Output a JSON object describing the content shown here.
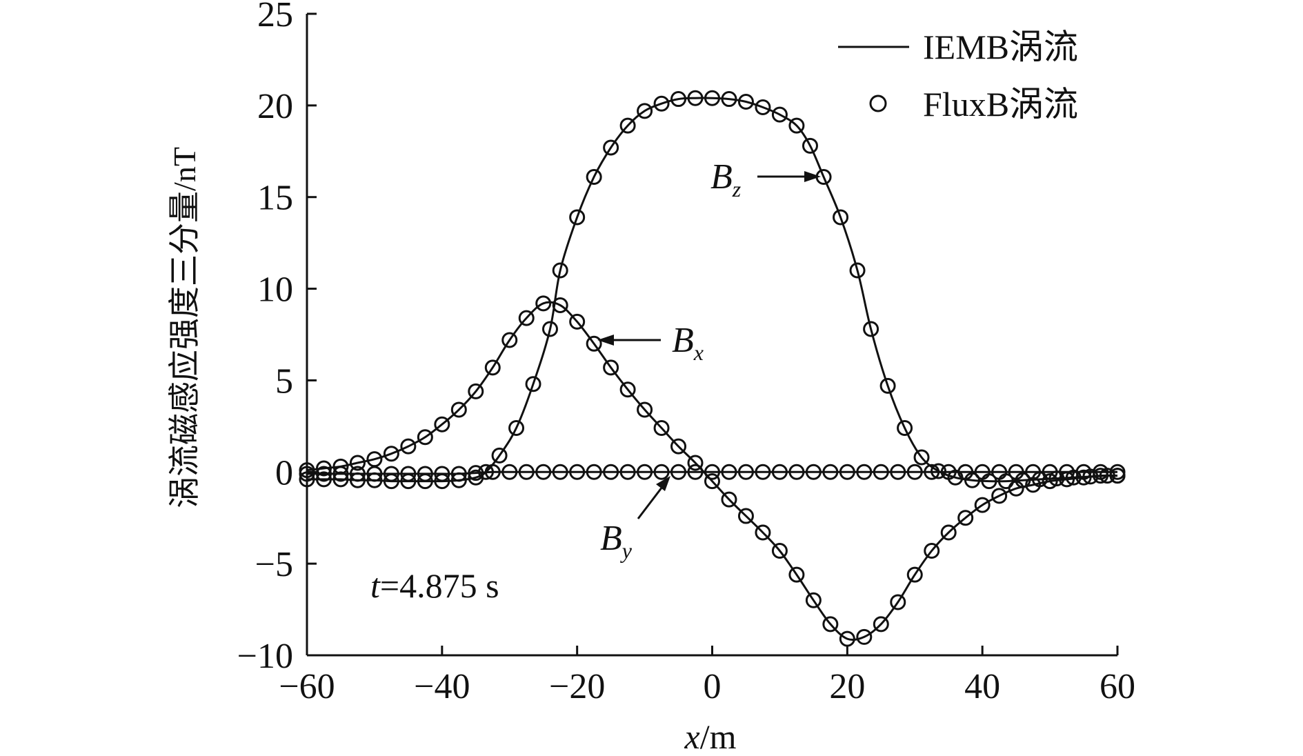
{
  "chart_data": {
    "type": "line",
    "xlabel_var": "x",
    "xlabel_unit": "/m",
    "ylabel": "涡流磁感应强度三分量/nT",
    "xlim": [
      -60,
      60
    ],
    "ylim": [
      -10,
      25
    ],
    "xticks": [
      -60,
      -40,
      -20,
      0,
      20,
      40,
      60
    ],
    "yticks": [
      -10,
      -5,
      0,
      5,
      10,
      15,
      20,
      25
    ],
    "xtick_labels": [
      "−60",
      "−40",
      "−20",
      "0",
      "20",
      "40",
      "60"
    ],
    "ytick_labels": [
      "−10",
      "−5",
      "0",
      "5",
      "10",
      "15",
      "20",
      "25"
    ],
    "legend": {
      "position": "top-right",
      "line_label": "IEMB涡流",
      "marker_label": "FluxB涡流"
    },
    "time_label_var": "t",
    "time_label_rest": "=4.875 s",
    "series": [
      {
        "name": "Bz",
        "label_main": "B",
        "label_sub": "z",
        "x": [
          -60,
          -57.5,
          -55,
          -52.5,
          -50,
          -47.5,
          -45,
          -42.5,
          -40,
          -37.5,
          -35,
          -33.5,
          -31.5,
          -29,
          -26.5,
          -24,
          -22.5,
          -20,
          -17.5,
          -15,
          -12.5,
          -10,
          -7.5,
          -5,
          -2.5,
          0,
          2.5,
          5,
          7.5,
          10,
          12.5,
          14.5,
          16.5,
          19,
          21.5,
          23.5,
          26,
          28.5,
          31,
          33.5,
          36,
          38.5,
          41,
          43.5,
          46,
          48.5,
          51,
          53.5,
          56,
          58.5,
          60
        ],
        "y": [
          -0.4,
          -0.4,
          -0.4,
          -0.45,
          -0.45,
          -0.5,
          -0.5,
          -0.5,
          -0.5,
          -0.45,
          -0.3,
          0.0,
          0.9,
          2.4,
          4.8,
          7.8,
          11.0,
          13.9,
          16.1,
          17.7,
          18.9,
          19.7,
          20.1,
          20.35,
          20.4,
          20.4,
          20.35,
          20.2,
          19.9,
          19.5,
          18.9,
          17.8,
          16.1,
          13.9,
          11.0,
          7.8,
          4.7,
          2.4,
          0.8,
          0.05,
          -0.3,
          -0.45,
          -0.5,
          -0.5,
          -0.45,
          -0.4,
          -0.35,
          -0.3,
          -0.25,
          -0.2,
          -0.2
        ]
      },
      {
        "name": "Bx",
        "label_main": "B",
        "label_sub": "x",
        "x": [
          -60,
          -57.5,
          -55,
          -52.5,
          -50,
          -47.5,
          -45,
          -42.5,
          -40,
          -37.5,
          -35,
          -32.5,
          -30,
          -27.5,
          -25,
          -22.5,
          -20,
          -17.5,
          -15,
          -12.5,
          -10,
          -7.5,
          -5,
          -2.5,
          0,
          2.5,
          5,
          7.5,
          10,
          12.5,
          15,
          17.5,
          20,
          22.5,
          25,
          27.5,
          30,
          32.5,
          35,
          37.5,
          40,
          42.5,
          45,
          47.5,
          50,
          52.5,
          55,
          57.5,
          60
        ],
        "y": [
          0.1,
          0.2,
          0.3,
          0.5,
          0.7,
          1.0,
          1.4,
          1.9,
          2.6,
          3.4,
          4.4,
          5.7,
          7.2,
          8.4,
          9.2,
          9.1,
          8.2,
          7.0,
          5.7,
          4.5,
          3.4,
          2.4,
          1.4,
          0.5,
          -0.5,
          -1.5,
          -2.4,
          -3.3,
          -4.3,
          -5.6,
          -7.0,
          -8.3,
          -9.1,
          -9.0,
          -8.3,
          -7.1,
          -5.6,
          -4.3,
          -3.3,
          -2.5,
          -1.8,
          -1.3,
          -0.9,
          -0.7,
          -0.5,
          -0.4,
          -0.3,
          -0.2,
          -0.2
        ]
      },
      {
        "name": "By",
        "label_main": "B",
        "label_sub": "y",
        "x": [
          -60,
          -57.5,
          -55,
          -52.5,
          -50,
          -47.5,
          -45,
          -42.5,
          -40,
          -37.5,
          -35,
          -32.5,
          -30,
          -27.5,
          -25,
          -22.5,
          -20,
          -17.5,
          -15,
          -12.5,
          -10,
          -7.5,
          -5,
          -2.5,
          0,
          2.5,
          5,
          7.5,
          10,
          12.5,
          15,
          17.5,
          20,
          22.5,
          25,
          27.5,
          30,
          32.5,
          35,
          37.5,
          40,
          42.5,
          45,
          47.5,
          50,
          52.5,
          55,
          57.5,
          60
        ],
        "y": [
          -0.1,
          -0.1,
          -0.1,
          -0.1,
          -0.1,
          -0.1,
          -0.1,
          -0.1,
          -0.1,
          -0.1,
          -0.05,
          0.0,
          0.0,
          0.0,
          0.0,
          0.0,
          0.0,
          0.0,
          0.0,
          0.0,
          0.0,
          0.0,
          0.0,
          0.0,
          0.0,
          0.0,
          0.0,
          0.0,
          0.0,
          0.0,
          0.0,
          0.0,
          0.0,
          0.0,
          0.0,
          0.0,
          0.0,
          0.0,
          0.0,
          0.0,
          0.0,
          0.0,
          0.0,
          0.0,
          0.0,
          0.0,
          0.0,
          0.0,
          0.0
        ]
      }
    ]
  }
}
